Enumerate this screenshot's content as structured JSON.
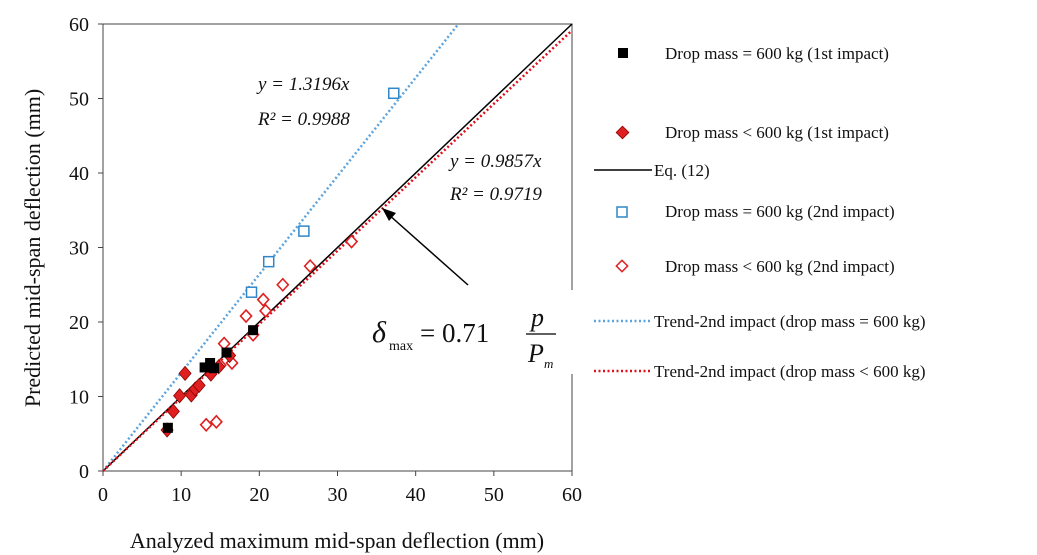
{
  "chart_data": {
    "type": "scatter",
    "xlabel": "Analyzed maximum mid-span deflection (mm)",
    "ylabel": "Predicted mid-span deflection (mm)",
    "xlim": [
      0,
      60
    ],
    "ylim": [
      0,
      60
    ],
    "xticks": [
      "0",
      "10",
      "20",
      "30",
      "40",
      "50",
      "60"
    ],
    "yticks": [
      "0",
      "10",
      "20",
      "30",
      "40",
      "50",
      "60"
    ],
    "grid": false,
    "legend_position": "right",
    "series": [
      {
        "name": "Drop mass = 600 kg (1st impact)",
        "marker": "square-filled",
        "color": "#000000",
        "points": [
          [
            8.3,
            5.8
          ],
          [
            13.0,
            13.9
          ],
          [
            13.7,
            14.5
          ],
          [
            14.2,
            13.8
          ],
          [
            15.8,
            15.9
          ],
          [
            19.2,
            18.9
          ]
        ]
      },
      {
        "name": "Drop mass < 600 kg (1st impact)",
        "marker": "diamond-filled",
        "color": "#e02020",
        "points": [
          [
            8.2,
            5.5
          ],
          [
            9.0,
            8.0
          ],
          [
            9.8,
            10.1
          ],
          [
            10.5,
            13.1
          ],
          [
            11.3,
            10.2
          ],
          [
            11.8,
            11.0
          ],
          [
            12.3,
            11.5
          ],
          [
            13.8,
            13.0
          ],
          [
            14.8,
            14.0
          ],
          [
            16.2,
            15.5
          ]
        ]
      },
      {
        "name": "Eq. (12)",
        "line": "solid",
        "color": "#000000",
        "x": [
          0,
          60
        ],
        "y": [
          0,
          60
        ]
      },
      {
        "name": "Drop mass = 600 kg (2nd impact)",
        "marker": "square-open",
        "color": "#2f86c8",
        "points": [
          [
            19.0,
            24.0
          ],
          [
            21.2,
            28.1
          ],
          [
            25.7,
            32.2
          ],
          [
            37.2,
            50.7
          ]
        ]
      },
      {
        "name": "Drop mass < 600 kg (2nd impact)",
        "marker": "diamond-open",
        "color": "#e02020",
        "points": [
          [
            13.2,
            6.2
          ],
          [
            14.5,
            6.6
          ],
          [
            15.0,
            14.2
          ],
          [
            15.5,
            17.1
          ],
          [
            16.5,
            14.5
          ],
          [
            18.3,
            20.8
          ],
          [
            19.2,
            18.3
          ],
          [
            20.5,
            23.0
          ],
          [
            20.8,
            21.5
          ],
          [
            23.0,
            25.0
          ],
          [
            26.5,
            27.5
          ],
          [
            31.8,
            30.8
          ]
        ]
      },
      {
        "name": "Trend-2nd impact (drop mass = 600 kg)",
        "line": "dotted",
        "color": "#5ba3dc",
        "slope": 1.3196
      },
      {
        "name": "Trend-2nd impact (drop mass < 600 kg)",
        "line": "dotted",
        "color": "#e0101a",
        "slope": 0.9857
      }
    ],
    "annotations": {
      "eq_blue": "y = 1.3196x",
      "r2_blue": "R² = 0.9988",
      "eq_red": "y = 0.9857x",
      "r2_red": "R² = 0.9719",
      "formula_lhs": "δ",
      "formula_sub": "max",
      "formula_eq": "= 0.71",
      "formula_num": "p",
      "formula_den": "P",
      "formula_den_sub": "m"
    }
  }
}
